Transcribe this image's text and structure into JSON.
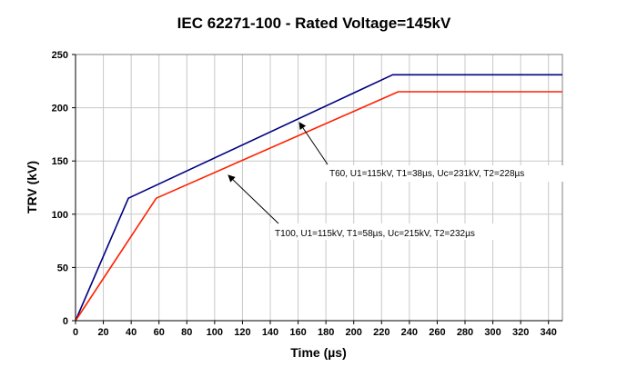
{
  "chart_data": {
    "type": "line",
    "title": "IEC 62271-100 - Rated Voltage=145kV",
    "xlabel": "Time (µs)",
    "ylabel": "TRV (kV)",
    "xlim": [
      0,
      350
    ],
    "ylim": [
      0,
      250
    ],
    "xticks": [
      0,
      20,
      40,
      60,
      80,
      100,
      120,
      140,
      160,
      180,
      200,
      220,
      240,
      260,
      280,
      300,
      320,
      340
    ],
    "yticks": [
      0,
      50,
      100,
      150,
      200,
      250
    ],
    "grid": true,
    "legend": "none",
    "series": [
      {
        "color": "#000080",
        "x": [
          0,
          38,
          228,
          350
        ],
        "y": [
          0,
          115,
          231,
          231
        ]
      },
      {
        "color": "#ff2000",
        "x": [
          0,
          58,
          232,
          350
        ],
        "y": [
          0,
          115,
          215,
          215
        ]
      }
    ],
    "annotations": [
      {
        "text": "T60, U1=115kV, T1=38µs, Uc=231kV, T2=228µs",
        "x": 162,
        "y": 190,
        "series": 0
      },
      {
        "text": "T100, U1=115kV, T1=58µs, Uc=215kV, T2=232µs",
        "x": 110,
        "y": 136,
        "series": 1
      }
    ]
  }
}
